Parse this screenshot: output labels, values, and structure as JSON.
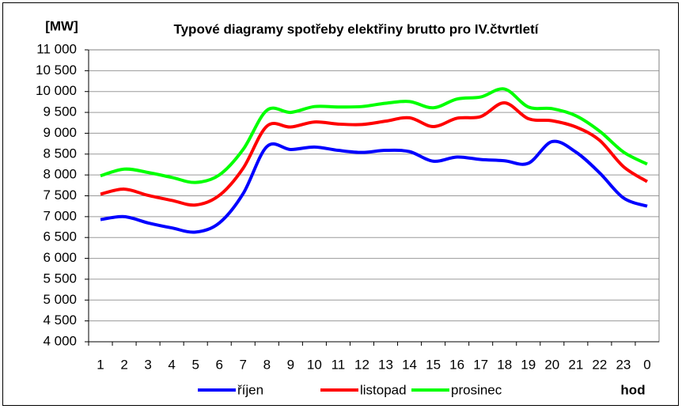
{
  "chart_data": {
    "type": "line",
    "title": "Typové diagramy spotřeby elektřiny brutto pro IV.čtvrtletí",
    "y_label": "[MW]",
    "x_label": "hod",
    "categories": [
      "1",
      "2",
      "3",
      "4",
      "5",
      "6",
      "7",
      "8",
      "9",
      "10",
      "11",
      "12",
      "13",
      "14",
      "15",
      "16",
      "17",
      "18",
      "19",
      "20",
      "21",
      "22",
      "23",
      "0"
    ],
    "series": [
      {
        "name": "říjen",
        "color": "#0000ff",
        "values": [
          6930,
          7000,
          6850,
          6730,
          6630,
          6850,
          7550,
          8680,
          8610,
          8670,
          8590,
          8540,
          8590,
          8560,
          8330,
          8430,
          8370,
          8340,
          8280,
          8800,
          8550,
          8050,
          7450,
          7250
        ]
      },
      {
        "name": "listopad",
        "color": "#ff0000",
        "values": [
          7540,
          7660,
          7510,
          7390,
          7280,
          7510,
          8160,
          9170,
          9150,
          9270,
          9220,
          9210,
          9290,
          9370,
          9160,
          9360,
          9400,
          9730,
          9350,
          9300,
          9150,
          8830,
          8200,
          7840
        ]
      },
      {
        "name": "prosinec",
        "color": "#00ff00",
        "values": [
          7980,
          8140,
          8060,
          7940,
          7820,
          8000,
          8610,
          9550,
          9500,
          9640,
          9630,
          9640,
          9720,
          9760,
          9610,
          9820,
          9870,
          10060,
          9630,
          9590,
          9420,
          9050,
          8550,
          8260
        ]
      }
    ],
    "ylim": [
      4000,
      11000
    ],
    "yticks": [
      {
        "value": 4000,
        "label": "4 000"
      },
      {
        "value": 4500,
        "label": "4 500"
      },
      {
        "value": 5000,
        "label": "5 000"
      },
      {
        "value": 5500,
        "label": "5 500"
      },
      {
        "value": 6000,
        "label": "6 000"
      },
      {
        "value": 6500,
        "label": "6 500"
      },
      {
        "value": 7000,
        "label": "7 000"
      },
      {
        "value": 7500,
        "label": "7 500"
      },
      {
        "value": 8000,
        "label": "8 000"
      },
      {
        "value": 8500,
        "label": "8 500"
      },
      {
        "value": 9000,
        "label": "9 000"
      },
      {
        "value": 9500,
        "label": "9 500"
      },
      {
        "value": 10000,
        "label": "10 000"
      },
      {
        "value": 10500,
        "label": "10 500"
      },
      {
        "value": 11000,
        "label": "11 000"
      }
    ],
    "grid": true,
    "legend": "bottom"
  }
}
